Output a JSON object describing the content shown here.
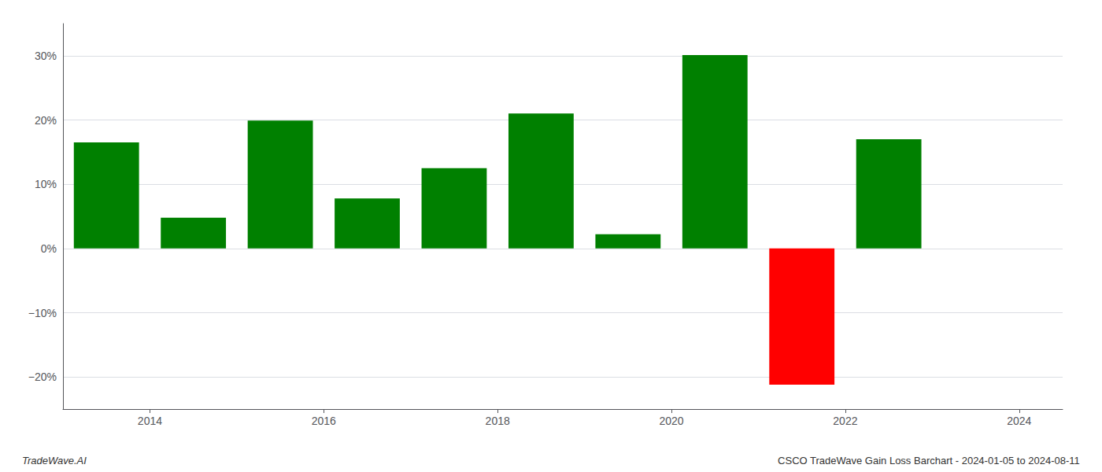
{
  "chart_data": {
    "type": "bar",
    "x": [
      2013.5,
      2014.5,
      2015.5,
      2016.5,
      2017.5,
      2018.5,
      2019.5,
      2020.5,
      2021.5,
      2022.5
    ],
    "values": [
      16.5,
      4.8,
      19.9,
      7.8,
      12.5,
      21.0,
      2.2,
      30.1,
      -21.2,
      17.0
    ],
    "colors": [
      "#008000",
      "#008000",
      "#008000",
      "#008000",
      "#008000",
      "#008000",
      "#008000",
      "#008000",
      "#ff0000",
      "#008000"
    ],
    "xlim": [
      2013.0,
      2024.5
    ],
    "xticks": [
      2014,
      2016,
      2018,
      2020,
      2022,
      2024
    ],
    "ylim": [
      -25,
      35
    ],
    "yticks": [
      {
        "value": -20,
        "label": "−20%"
      },
      {
        "value": -10,
        "label": "−10%"
      },
      {
        "value": 0,
        "label": "0%"
      },
      {
        "value": 10,
        "label": "10%"
      },
      {
        "value": 20,
        "label": "20%"
      },
      {
        "value": 30,
        "label": "30%"
      }
    ],
    "grid": true,
    "annotations": [
      "TradeWave.AI",
      "CSCO TradeWave Gain Loss Barchart - 2024-01-05 to 2024-08-11"
    ]
  }
}
